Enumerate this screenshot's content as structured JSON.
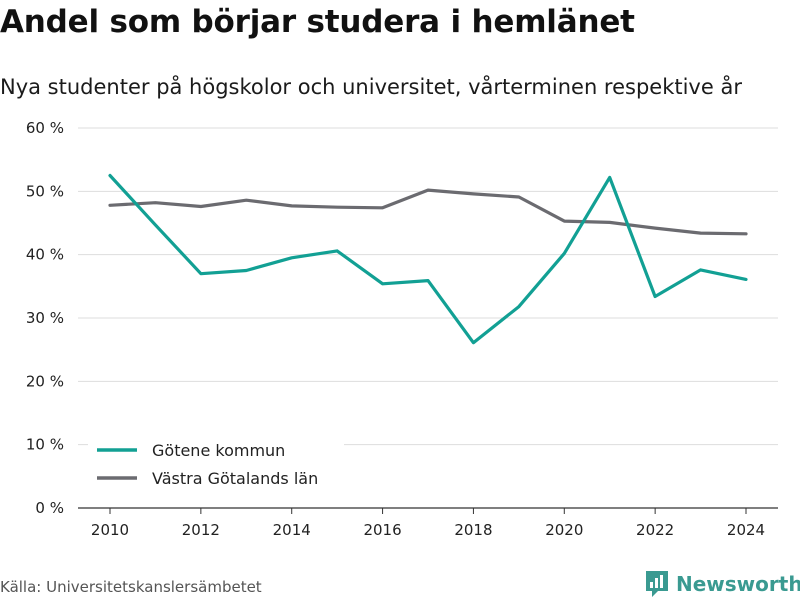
{
  "title": "Andel som börjar studera i hemlänet",
  "subtitle": "Nya studenter på högskolor och universitet, vårterminen respektive år",
  "source": "Källa: Universitetskanslersämbetet",
  "brand": "Newsworthy",
  "colors": {
    "accent": "#12a094",
    "secondary": "#6b6b70",
    "brand": "#3a9a91"
  },
  "chart_data": {
    "type": "line",
    "x": [
      2010,
      2011,
      2012,
      2013,
      2014,
      2015,
      2016,
      2017,
      2018,
      2019,
      2020,
      2021,
      2022,
      2023,
      2024
    ],
    "x_ticks": [
      2010,
      2012,
      2014,
      2016,
      2018,
      2020,
      2022,
      2024
    ],
    "y_ticks": [
      0,
      10,
      20,
      30,
      40,
      50,
      60
    ],
    "y_tick_labels": [
      "0 %",
      "10 %",
      "20 %",
      "30 %",
      "40 %",
      "50 %",
      "60 %"
    ],
    "ylim": [
      0,
      60
    ],
    "xlim": [
      2010,
      2024
    ],
    "grid": true,
    "legend_position": "bottom-left",
    "series": [
      {
        "name": "Götene kommun",
        "color": "#12a094",
        "values": [
          52.5,
          44.7,
          37.0,
          37.5,
          39.5,
          40.6,
          35.4,
          35.9,
          26.1,
          31.8,
          40.2,
          52.2,
          33.4,
          37.6,
          36.1
        ]
      },
      {
        "name": "Västra Götalands län",
        "color": "#6b6b70",
        "values": [
          47.8,
          48.2,
          47.6,
          48.6,
          47.7,
          47.5,
          47.4,
          50.2,
          49.6,
          49.1,
          45.3,
          45.1,
          44.2,
          43.4,
          43.3
        ]
      }
    ]
  }
}
